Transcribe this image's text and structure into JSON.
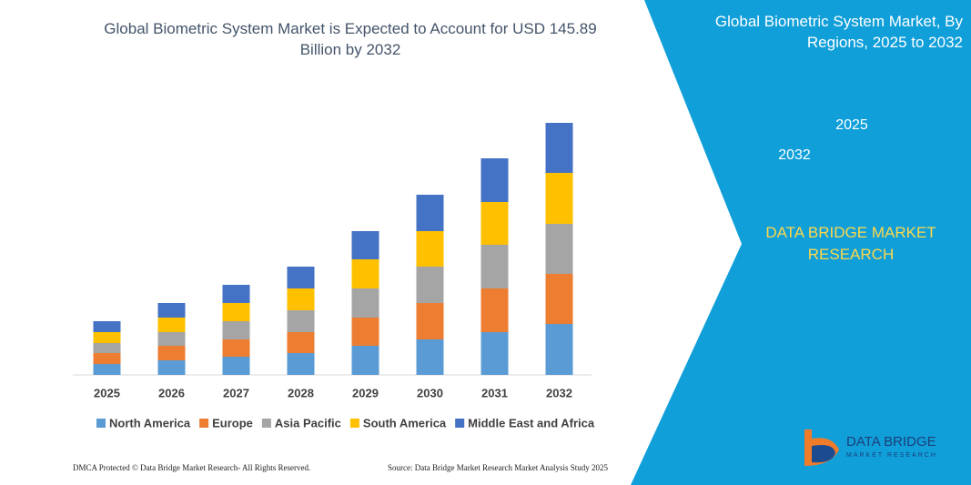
{
  "chart_data": {
    "type": "stacked-bar",
    "title": "Global Biometric System Market is Expected to Account for USD 145.89 Billion by 2032",
    "categories": [
      "2025",
      "2026",
      "2027",
      "2028",
      "2029",
      "2030",
      "2031",
      "2032"
    ],
    "series": [
      {
        "name": "North America",
        "color": "#5b9bd5",
        "values": [
          12,
          16,
          20,
          24,
          32,
          39,
          47,
          56
        ]
      },
      {
        "name": "Europe",
        "color": "#ed7d31",
        "values": [
          12,
          16,
          19,
          23,
          31,
          40,
          48,
          55
        ]
      },
      {
        "name": "Asia Pacific",
        "color": "#a5a5a5",
        "values": [
          11,
          15,
          20,
          24,
          32,
          40,
          48,
          55
        ]
      },
      {
        "name": "South America",
        "color": "#ffc000",
        "values": [
          12,
          16,
          20,
          24,
          32,
          39,
          47,
          56
        ]
      },
      {
        "name": "Middle East and Africa",
        "color": "#4472c4",
        "values": [
          12,
          16,
          20,
          24,
          31,
          40,
          48,
          55
        ]
      }
    ],
    "ylim": [
      0,
      300
    ]
  },
  "panel": {
    "title": "Global Biometric System Market, By Regions, 2025 to 2032",
    "hexagons": [
      "2025",
      "2032"
    ],
    "brand": "DATA BRIDGE MARKET RESEARCH"
  },
  "logo": {
    "name": "DATA BRIDGE",
    "tagline": "MARKET RESEARCH"
  },
  "footer": {
    "left": "DMCA Protected © Data Bridge Market Research-  All Rights Reserved.",
    "right": "Source: Data Bridge Market Research  Market Analysis Study 2025"
  }
}
